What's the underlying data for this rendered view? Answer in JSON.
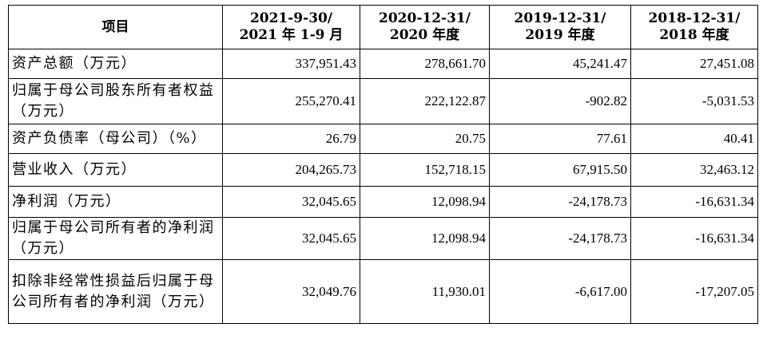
{
  "table": {
    "header": {
      "item": "项目",
      "periods": [
        {
          "line1": "2021-9-30/",
          "line2": "2021 年 1-9 月"
        },
        {
          "line1": "2020-12-31/",
          "line2": "2020 年度"
        },
        {
          "line1": "2019-12-31/",
          "line2": "2019 年度"
        },
        {
          "line1": "2018-12-31/",
          "line2": "2018 年度"
        }
      ]
    },
    "rows": [
      {
        "label": "资产总额（万元）",
        "values": [
          "337,951.43",
          "278,661.70",
          "45,241.47",
          "27,451.08"
        ]
      },
      {
        "label": "归属于母公司股东所有者权益（万元）",
        "values": [
          "255,270.41",
          "222,122.87",
          "-902.82",
          "-5,031.53"
        ]
      },
      {
        "label": "资产负债率（母公司）（%）",
        "values": [
          "26.79",
          "20.75",
          "77.61",
          "40.41"
        ]
      },
      {
        "label": "营业收入（万元）",
        "values": [
          "204,265.73",
          "152,718.15",
          "67,915.50",
          "32,463.12"
        ]
      },
      {
        "label": "净利润（万元）",
        "values": [
          "32,045.65",
          "12,098.94",
          "-24,178.73",
          "-16,631.34"
        ]
      },
      {
        "label": "归属于母公司所有者的净利润（万元）",
        "values": [
          "32,045.65",
          "12,098.94",
          "-24,178.73",
          "-16,631.34"
        ]
      },
      {
        "label": "扣除非经常性损益后归属于母公司所有者的净利润（万元）",
        "values": [
          "32,049.76",
          "11,930.01",
          "-6,617.00",
          "-17,207.05"
        ]
      }
    ]
  }
}
